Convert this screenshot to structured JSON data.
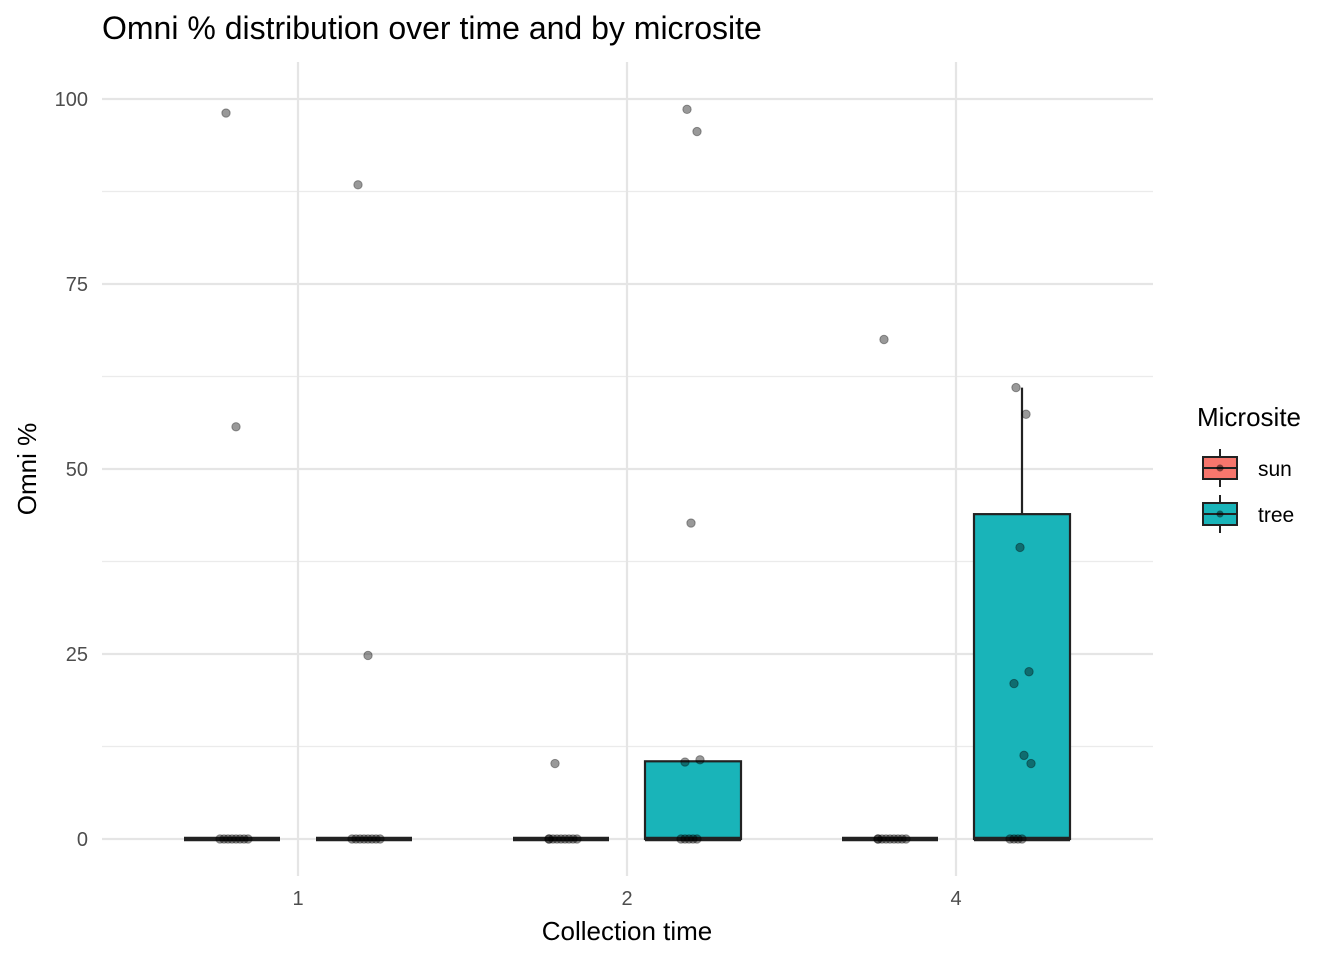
{
  "chart_data": {
    "type": "box",
    "title": "Omni % distribution over time and by microsite",
    "xlabel": "Collection time",
    "ylabel": "Omni %",
    "categories": [
      "1",
      "2",
      "4"
    ],
    "ylim": [
      -5,
      105
    ],
    "yticks": [
      0,
      25,
      50,
      75,
      100
    ],
    "grid": true,
    "legend": {
      "title": "Microsite",
      "position": "right",
      "entries": [
        {
          "label": "sun",
          "color": "#F8766D"
        },
        {
          "label": "tree",
          "color": "#19B4B9"
        }
      ]
    },
    "series": [
      {
        "name": "sun",
        "color": "#F8766D",
        "boxes": [
          {
            "category": "1",
            "q1": 0,
            "median": 0,
            "q3": 0,
            "whisker_low": 0,
            "whisker_high": 0
          },
          {
            "category": "2",
            "q1": 0,
            "median": 0,
            "q3": 0,
            "whisker_low": 0,
            "whisker_high": 0
          },
          {
            "category": "4",
            "q1": 0,
            "median": 0,
            "q3": 0,
            "whisker_low": 0,
            "whisker_high": 0
          }
        ],
        "points": [
          {
            "category": "1",
            "values": [
              98.1,
              55.7,
              0,
              0,
              0,
              0,
              0,
              0,
              0,
              0
            ]
          },
          {
            "category": "2",
            "values": [
              10.2,
              0,
              0,
              0,
              0,
              0,
              0,
              0,
              0,
              0
            ]
          },
          {
            "category": "4",
            "values": [
              67.5,
              0,
              0,
              0,
              0,
              0,
              0,
              0,
              0,
              0
            ]
          }
        ]
      },
      {
        "name": "tree",
        "color": "#19B4B9",
        "boxes": [
          {
            "category": "1",
            "q1": 0,
            "median": 0,
            "q3": 0,
            "whisker_low": 0,
            "whisker_high": 0
          },
          {
            "category": "2",
            "q1": 0,
            "median": 0,
            "q3": 10.5,
            "whisker_low": 0,
            "whisker_high": 10.5
          },
          {
            "category": "4",
            "q1": 0,
            "median": 0,
            "q3": 43.9,
            "whisker_low": 0,
            "whisker_high": 61.0
          }
        ],
        "points": [
          {
            "category": "1",
            "values": [
              88.4,
              24.8,
              0,
              0,
              0,
              0,
              0,
              0,
              0,
              0
            ]
          },
          {
            "category": "2",
            "values": [
              98.6,
              95.6,
              42.7,
              10.7,
              10.4,
              0,
              0,
              0,
              0,
              0
            ]
          },
          {
            "category": "4",
            "values": [
              61.0,
              57.4,
              39.4,
              22.6,
              21.0,
              11.3,
              10.2,
              0,
              0,
              0,
              0
            ]
          }
        ]
      }
    ]
  }
}
